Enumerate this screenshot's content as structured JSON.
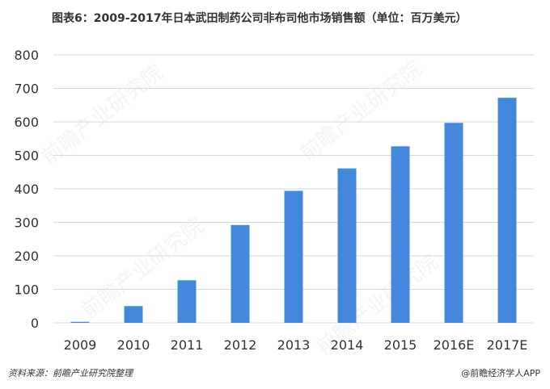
{
  "title": "图表6：2009-2017年日本武田制药公司非布司他市场销售额（单位：百万美元）",
  "source": "资料来源：前瞻产业研究院整理",
  "credit": "@前瞻经济学人APP",
  "watermark": "前瞻产业研究院",
  "colors": {
    "bar": "#4488dd",
    "grid": "#d9d9d9",
    "text": "#333333"
  },
  "chart_data": {
    "type": "bar",
    "title": "图表6：2009-2017年日本武田制药公司非布司他市场销售额（单位：百万美元）",
    "xlabel": "",
    "ylabel": "",
    "categories": [
      "2009",
      "2010",
      "2011",
      "2012",
      "2013",
      "2014",
      "2015",
      "2016E",
      "2017E"
    ],
    "values": [
      3,
      50,
      127,
      292,
      394,
      461,
      527,
      597,
      672
    ],
    "ylim": [
      0,
      800
    ],
    "yticks": [
      0,
      100,
      200,
      300,
      400,
      500,
      600,
      700,
      800
    ],
    "grid": true,
    "legend": "none"
  }
}
